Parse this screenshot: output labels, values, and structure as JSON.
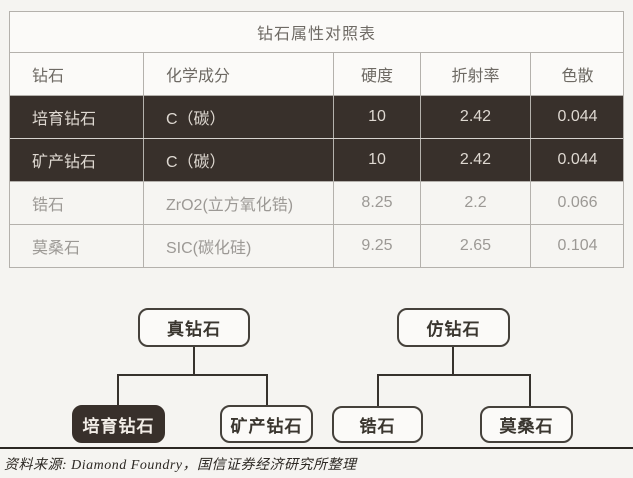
{
  "table": {
    "title": "钻石属性对照表",
    "columns": [
      "钻石",
      "化学成分",
      "硬度",
      "折射率",
      "色散"
    ],
    "rows": [
      {
        "name": "培育钻石",
        "composition": "C（碳）",
        "hardness": "10",
        "refractive_index": "2.42",
        "dispersion": "0.044",
        "highlight": true
      },
      {
        "name": "矿产钻石",
        "composition": "C（碳）",
        "hardness": "10",
        "refractive_index": "2.42",
        "dispersion": "0.044",
        "highlight": true
      },
      {
        "name": "锆石",
        "composition": "ZrO2(立方氧化锆)",
        "hardness": "8.25",
        "refractive_index": "2.2",
        "dispersion": "0.066",
        "highlight": false
      },
      {
        "name": "莫桑石",
        "composition": "SIC(碳化硅)",
        "hardness": "9.25",
        "refractive_index": "2.65",
        "dispersion": "0.104",
        "highlight": false
      }
    ]
  },
  "diagram": {
    "trees": [
      {
        "parent": "真钻石",
        "children": [
          {
            "label": "培育钻石",
            "highlight": true
          },
          {
            "label": "矿产钻石",
            "highlight": false
          }
        ]
      },
      {
        "parent": "仿钻石",
        "children": [
          {
            "label": "锆石",
            "highlight": false
          },
          {
            "label": "莫桑石",
            "highlight": false
          }
        ]
      }
    ]
  },
  "footer": {
    "source": "资料来源: Diamond Foundry，国信证券经济研究所整理"
  },
  "colors": {
    "highlight_bg": "#38302b",
    "highlight_text": "#ded8d1",
    "line_dark": "#36322d",
    "border_gray": "#b4b1ac"
  }
}
